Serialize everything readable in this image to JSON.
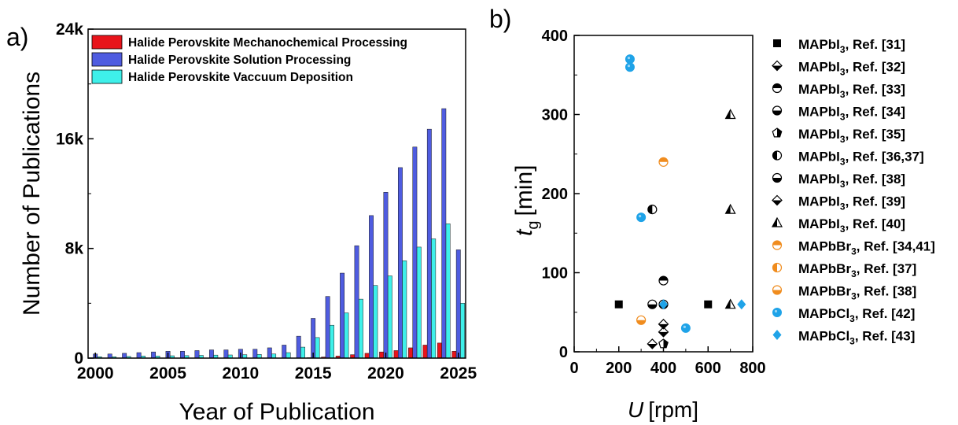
{
  "chart_data": [
    {
      "panel_label": "a)",
      "type": "bar",
      "xlabel": "Year of Publication",
      "ylabel": "Number of Publications",
      "ylim": [
        0,
        24000
      ],
      "yticks": [
        0,
        8000,
        16000,
        24000
      ],
      "ytick_labels": [
        "0",
        "8k",
        "16k",
        "24k"
      ],
      "xticks": [
        2000,
        2005,
        2010,
        2015,
        2020,
        2025
      ],
      "legend_position": "top-right",
      "categories": [
        2000,
        2001,
        2002,
        2003,
        2004,
        2005,
        2006,
        2007,
        2008,
        2009,
        2010,
        2011,
        2012,
        2013,
        2014,
        2015,
        2016,
        2017,
        2018,
        2019,
        2020,
        2021,
        2022,
        2023,
        2024,
        2025
      ],
      "series": [
        {
          "name": "Halide Perovskite Mechanochemical Processing",
          "color": "#e8141b",
          "values": [
            0,
            0,
            0,
            0,
            0,
            0,
            0,
            0,
            0,
            0,
            0,
            0,
            0,
            0,
            0,
            30,
            80,
            150,
            250,
            350,
            450,
            550,
            750,
            950,
            1100,
            500
          ]
        },
        {
          "name": "Halide Perovskite Solution Processing",
          "color": "#4f5ce0",
          "values": [
            300,
            300,
            350,
            400,
            450,
            500,
            500,
            550,
            600,
            600,
            650,
            650,
            750,
            950,
            1600,
            2900,
            4500,
            6200,
            8200,
            10400,
            12100,
            13900,
            15400,
            16700,
            18200,
            7900
          ]
        },
        {
          "name": "Halide Perovskite Vaccuum Deposition",
          "color": "#3ef0ea",
          "values": [
            100,
            100,
            120,
            150,
            150,
            170,
            180,
            200,
            220,
            230,
            250,
            270,
            300,
            400,
            800,
            1500,
            2400,
            3300,
            4300,
            5300,
            6000,
            7100,
            8100,
            8700,
            9800,
            4000
          ]
        }
      ]
    },
    {
      "panel_label": "b)",
      "type": "scatter",
      "xlabel_var": "U",
      "xlabel_unit": "[rpm]",
      "ylabel_var": "t",
      "ylabel_sub": "g",
      "ylabel_unit": "[min]",
      "xlim": [
        0,
        800
      ],
      "ylim": [
        0,
        400
      ],
      "xticks": [
        0,
        200,
        400,
        600,
        800
      ],
      "yticks": [
        0,
        100,
        200,
        300,
        400
      ],
      "legend_position": "right",
      "series": [
        {
          "name_main": "MAPbI",
          "name_sub": "3",
          "name_rest": ", Ref. [31]",
          "marker": "square",
          "color": "#000000",
          "points": [
            [
              200,
              60
            ],
            [
              600,
              60
            ]
          ]
        },
        {
          "name_main": "MAPbI",
          "name_sub": "3",
          "name_rest": ", Ref. [32]",
          "marker": "diamond-half",
          "color": "#000000",
          "points": [
            [
              400,
              25
            ]
          ]
        },
        {
          "name_main": "MAPbI",
          "name_sub": "3",
          "name_rest": ", Ref. [33]",
          "marker": "circle-top",
          "color": "#000000",
          "points": [
            [
              400,
              90
            ]
          ]
        },
        {
          "name_main": "MAPbI",
          "name_sub": "3",
          "name_rest": ", Ref. [34]",
          "marker": "circle-bottom",
          "color": "#000000",
          "points": [
            [
              350,
              60
            ]
          ]
        },
        {
          "name_main": "MAPbI",
          "name_sub": "3",
          "name_rest": ", Ref. [35]",
          "marker": "pentagon-half",
          "color": "#000000",
          "points": [
            [
              400,
              10
            ]
          ]
        },
        {
          "name_main": "MAPbI",
          "name_sub": "3",
          "name_rest": ", Ref. [36,37]",
          "marker": "circle-left",
          "color": "#000000",
          "points": [
            [
              350,
              180
            ]
          ]
        },
        {
          "name_main": "MAPbI",
          "name_sub": "3",
          "name_rest": ", Ref. [38]",
          "marker": "circle-bottom",
          "color": "#000000",
          "points": [
            [
              400,
              60
            ]
          ]
        },
        {
          "name_main": "MAPbI",
          "name_sub": "3",
          "name_rest": ", Ref. [39]",
          "marker": "diamond-half",
          "color": "#000000",
          "points": [
            [
              350,
              10
            ],
            [
              400,
              35
            ]
          ]
        },
        {
          "name_main": "MAPbI",
          "name_sub": "3",
          "name_rest": ", Ref. [40]",
          "marker": "triangle-half",
          "color": "#000000",
          "points": [
            [
              700,
              300
            ],
            [
              700,
              180
            ],
            [
              700,
              60
            ]
          ]
        },
        {
          "name_main": "MAPbBr",
          "name_sub": "3",
          "name_rest": ", Ref. [34,41]",
          "marker": "circle-top",
          "color": "#f08c1e",
          "points": [
            [
              400,
              240
            ]
          ]
        },
        {
          "name_main": "MAPbBr",
          "name_sub": "3",
          "name_rest": ", Ref. [37]",
          "marker": "circle-left",
          "color": "#f08c1e",
          "points": []
        },
        {
          "name_main": "MAPbBr",
          "name_sub": "3",
          "name_rest": ", Ref. [38]",
          "marker": "circle-bottom",
          "color": "#f08c1e",
          "points": [
            [
              300,
              40
            ]
          ]
        },
        {
          "name_main": "MAPbCl",
          "name_sub": "3",
          "name_rest": ", Ref. [42]",
          "marker": "circle-full",
          "color": "#1fa3e8",
          "points": [
            [
              250,
              370
            ],
            [
              250,
              360
            ],
            [
              300,
              170
            ],
            [
              500,
              30
            ]
          ]
        },
        {
          "name_main": "MAPbCl",
          "name_sub": "3",
          "name_rest": ", Ref. [43]",
          "marker": "diamond-full",
          "color": "#1fa3e8",
          "points": [
            [
              400,
              60
            ],
            [
              750,
              60
            ]
          ]
        }
      ]
    }
  ]
}
